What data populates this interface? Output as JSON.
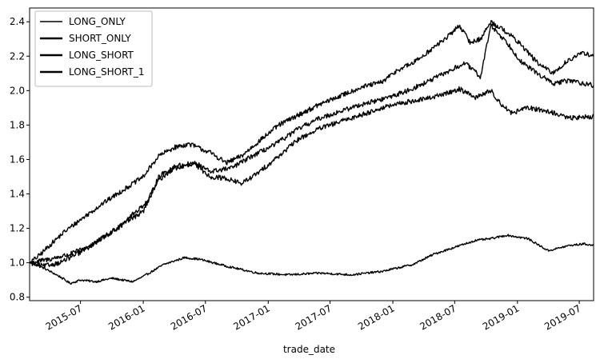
{
  "chart_data": {
    "type": "line",
    "xlabel": "trade_date",
    "ylabel": "",
    "ylim": [
      0.78,
      2.48
    ],
    "xlim": [
      "2015-02-02",
      "2019-08-12"
    ],
    "yticks": [
      0.8,
      1.0,
      1.2,
      1.4,
      1.6,
      1.8,
      2.0,
      2.2,
      2.4
    ],
    "xticks": [
      "2015-07",
      "2016-01",
      "2016-07",
      "2017-01",
      "2017-07",
      "2018-01",
      "2018-07",
      "2019-01",
      "2019-07"
    ],
    "legend": "top-left",
    "grid": false,
    "series": [
      {
        "name": "LONG_ONLY",
        "color": "#000000",
        "points": [
          [
            "2015-02-02",
            1.0
          ],
          [
            "2015-03-15",
            0.97
          ],
          [
            "2015-05-01",
            0.92
          ],
          [
            "2015-06-01",
            0.88
          ],
          [
            "2015-07-01",
            0.9
          ],
          [
            "2015-08-15",
            0.89
          ],
          [
            "2015-10-01",
            0.91
          ],
          [
            "2015-12-01",
            0.89
          ],
          [
            "2016-01-01",
            0.92
          ],
          [
            "2016-03-01",
            0.99
          ],
          [
            "2016-05-01",
            1.03
          ],
          [
            "2016-06-15",
            1.02
          ],
          [
            "2016-09-01",
            0.98
          ],
          [
            "2016-12-01",
            0.94
          ],
          [
            "2017-03-01",
            0.93
          ],
          [
            "2017-06-01",
            0.94
          ],
          [
            "2017-09-01",
            0.93
          ],
          [
            "2017-12-01",
            0.95
          ],
          [
            "2018-03-01",
            0.99
          ],
          [
            "2018-05-01",
            1.05
          ],
          [
            "2018-07-01",
            1.09
          ],
          [
            "2018-09-01",
            1.13
          ],
          [
            "2018-10-15",
            1.14
          ],
          [
            "2018-12-01",
            1.16
          ],
          [
            "2019-02-01",
            1.14
          ],
          [
            "2019-04-01",
            1.07
          ],
          [
            "2019-06-01",
            1.1
          ],
          [
            "2019-07-15",
            1.11
          ],
          [
            "2019-08-12",
            1.1
          ]
        ]
      },
      {
        "name": "SHORT_ONLY",
        "color": "#000000",
        "points": [
          [
            "2015-02-02",
            1.0
          ],
          [
            "2015-03-01",
            1.04
          ],
          [
            "2015-04-01",
            1.1
          ],
          [
            "2015-05-15",
            1.18
          ],
          [
            "2015-07-01",
            1.25
          ],
          [
            "2015-09-01",
            1.34
          ],
          [
            "2015-11-01",
            1.42
          ],
          [
            "2016-01-01",
            1.5
          ],
          [
            "2016-02-15",
            1.62
          ],
          [
            "2016-04-01",
            1.67
          ],
          [
            "2016-05-15",
            1.69
          ],
          [
            "2016-07-15",
            1.64
          ],
          [
            "2016-09-01",
            1.58
          ],
          [
            "2016-10-15",
            1.62
          ],
          [
            "2016-12-01",
            1.7
          ],
          [
            "2017-02-01",
            1.8
          ],
          [
            "2017-04-01",
            1.86
          ],
          [
            "2017-06-01",
            1.92
          ],
          [
            "2017-08-01",
            1.97
          ],
          [
            "2017-10-01",
            2.02
          ],
          [
            "2017-12-01",
            2.05
          ],
          [
            "2018-01-15",
            2.12
          ],
          [
            "2018-03-01",
            2.16
          ],
          [
            "2018-05-01",
            2.25
          ],
          [
            "2018-06-15",
            2.32
          ],
          [
            "2018-07-15",
            2.38
          ],
          [
            "2018-08-15",
            2.28
          ],
          [
            "2018-09-15",
            2.3
          ],
          [
            "2018-10-15",
            2.4
          ],
          [
            "2018-12-01",
            2.34
          ],
          [
            "2019-01-15",
            2.26
          ],
          [
            "2019-03-01",
            2.16
          ],
          [
            "2019-04-15",
            2.1
          ],
          [
            "2019-06-01",
            2.18
          ],
          [
            "2019-07-15",
            2.22
          ],
          [
            "2019-08-12",
            2.2
          ]
        ]
      },
      {
        "name": "LONG_SHORT",
        "color": "#000000",
        "points": [
          [
            "2015-02-02",
            1.0
          ],
          [
            "2015-04-01",
            1.02
          ],
          [
            "2015-06-01",
            1.05
          ],
          [
            "2015-08-01",
            1.1
          ],
          [
            "2015-10-01",
            1.18
          ],
          [
            "2015-12-01",
            1.28
          ],
          [
            "2016-01-15",
            1.36
          ],
          [
            "2016-02-15",
            1.5
          ],
          [
            "2016-04-01",
            1.56
          ],
          [
            "2016-06-01",
            1.58
          ],
          [
            "2016-07-15",
            1.53
          ],
          [
            "2016-09-15",
            1.55
          ],
          [
            "2016-11-15",
            1.62
          ],
          [
            "2017-01-15",
            1.68
          ],
          [
            "2017-04-01",
            1.78
          ],
          [
            "2017-06-01",
            1.84
          ],
          [
            "2017-08-01",
            1.88
          ],
          [
            "2017-10-01",
            1.92
          ],
          [
            "2017-12-01",
            1.95
          ],
          [
            "2018-02-01",
            1.99
          ],
          [
            "2018-04-01",
            2.04
          ],
          [
            "2018-06-01",
            2.1
          ],
          [
            "2018-08-01",
            2.16
          ],
          [
            "2018-09-15",
            2.08
          ],
          [
            "2018-10-15",
            2.38
          ],
          [
            "2018-12-01",
            2.28
          ],
          [
            "2019-01-15",
            2.16
          ],
          [
            "2019-03-01",
            2.1
          ],
          [
            "2019-04-15",
            2.04
          ],
          [
            "2019-06-01",
            2.06
          ],
          [
            "2019-08-12",
            2.03
          ]
        ]
      },
      {
        "name": "LONG_SHORT_1",
        "color": "#000000",
        "points": [
          [
            "2015-02-02",
            1.0
          ],
          [
            "2015-03-15",
            0.98
          ],
          [
            "2015-05-01",
            1.0
          ],
          [
            "2015-07-01",
            1.06
          ],
          [
            "2015-09-01",
            1.14
          ],
          [
            "2015-11-01",
            1.22
          ],
          [
            "2016-01-01",
            1.3
          ],
          [
            "2016-02-15",
            1.48
          ],
          [
            "2016-04-01",
            1.55
          ],
          [
            "2016-06-01",
            1.57
          ],
          [
            "2016-07-15",
            1.5
          ],
          [
            "2016-09-01",
            1.49
          ],
          [
            "2016-10-15",
            1.46
          ],
          [
            "2016-12-01",
            1.52
          ],
          [
            "2017-02-01",
            1.62
          ],
          [
            "2017-04-01",
            1.72
          ],
          [
            "2017-06-01",
            1.78
          ],
          [
            "2017-08-01",
            1.82
          ],
          [
            "2017-10-01",
            1.86
          ],
          [
            "2017-12-01",
            1.9
          ],
          [
            "2018-02-01",
            1.93
          ],
          [
            "2018-04-01",
            1.95
          ],
          [
            "2018-06-01",
            1.98
          ],
          [
            "2018-07-15",
            2.01
          ],
          [
            "2018-09-01",
            1.96
          ],
          [
            "2018-10-15",
            2.0
          ],
          [
            "2018-11-15",
            1.92
          ],
          [
            "2018-12-15",
            1.87
          ],
          [
            "2019-02-01",
            1.9
          ],
          [
            "2019-04-01",
            1.88
          ],
          [
            "2019-06-01",
            1.84
          ],
          [
            "2019-08-12",
            1.85
          ]
        ]
      }
    ]
  }
}
